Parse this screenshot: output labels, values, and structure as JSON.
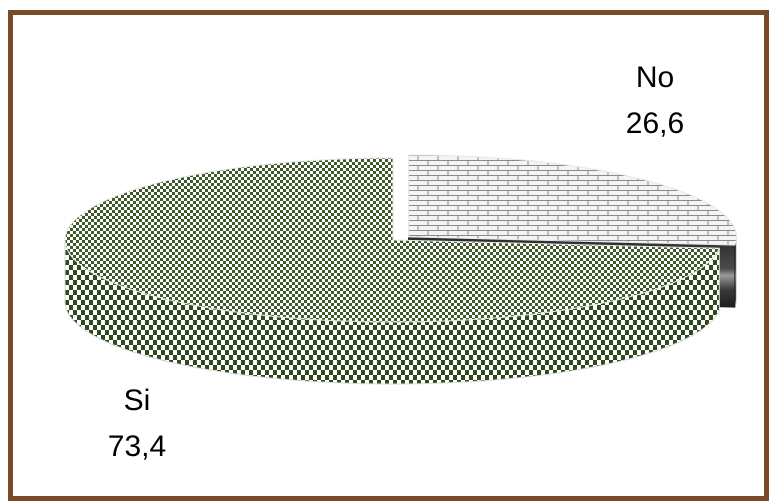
{
  "chart_data": {
    "type": "pie",
    "variant": "3d-exploded",
    "title": "",
    "slices": [
      {
        "label": "No",
        "value": 26.6,
        "value_text": "26,6",
        "pattern": "brick",
        "colors": [
          "#ffffff",
          "#8a8a8a"
        ]
      },
      {
        "label": "Si",
        "value": 73.4,
        "value_text": "73,4",
        "pattern": "checker",
        "colors": [
          "#ffffff",
          "#3d5a2a"
        ]
      }
    ],
    "legend": "none",
    "border_color": "#7a4a2a"
  }
}
